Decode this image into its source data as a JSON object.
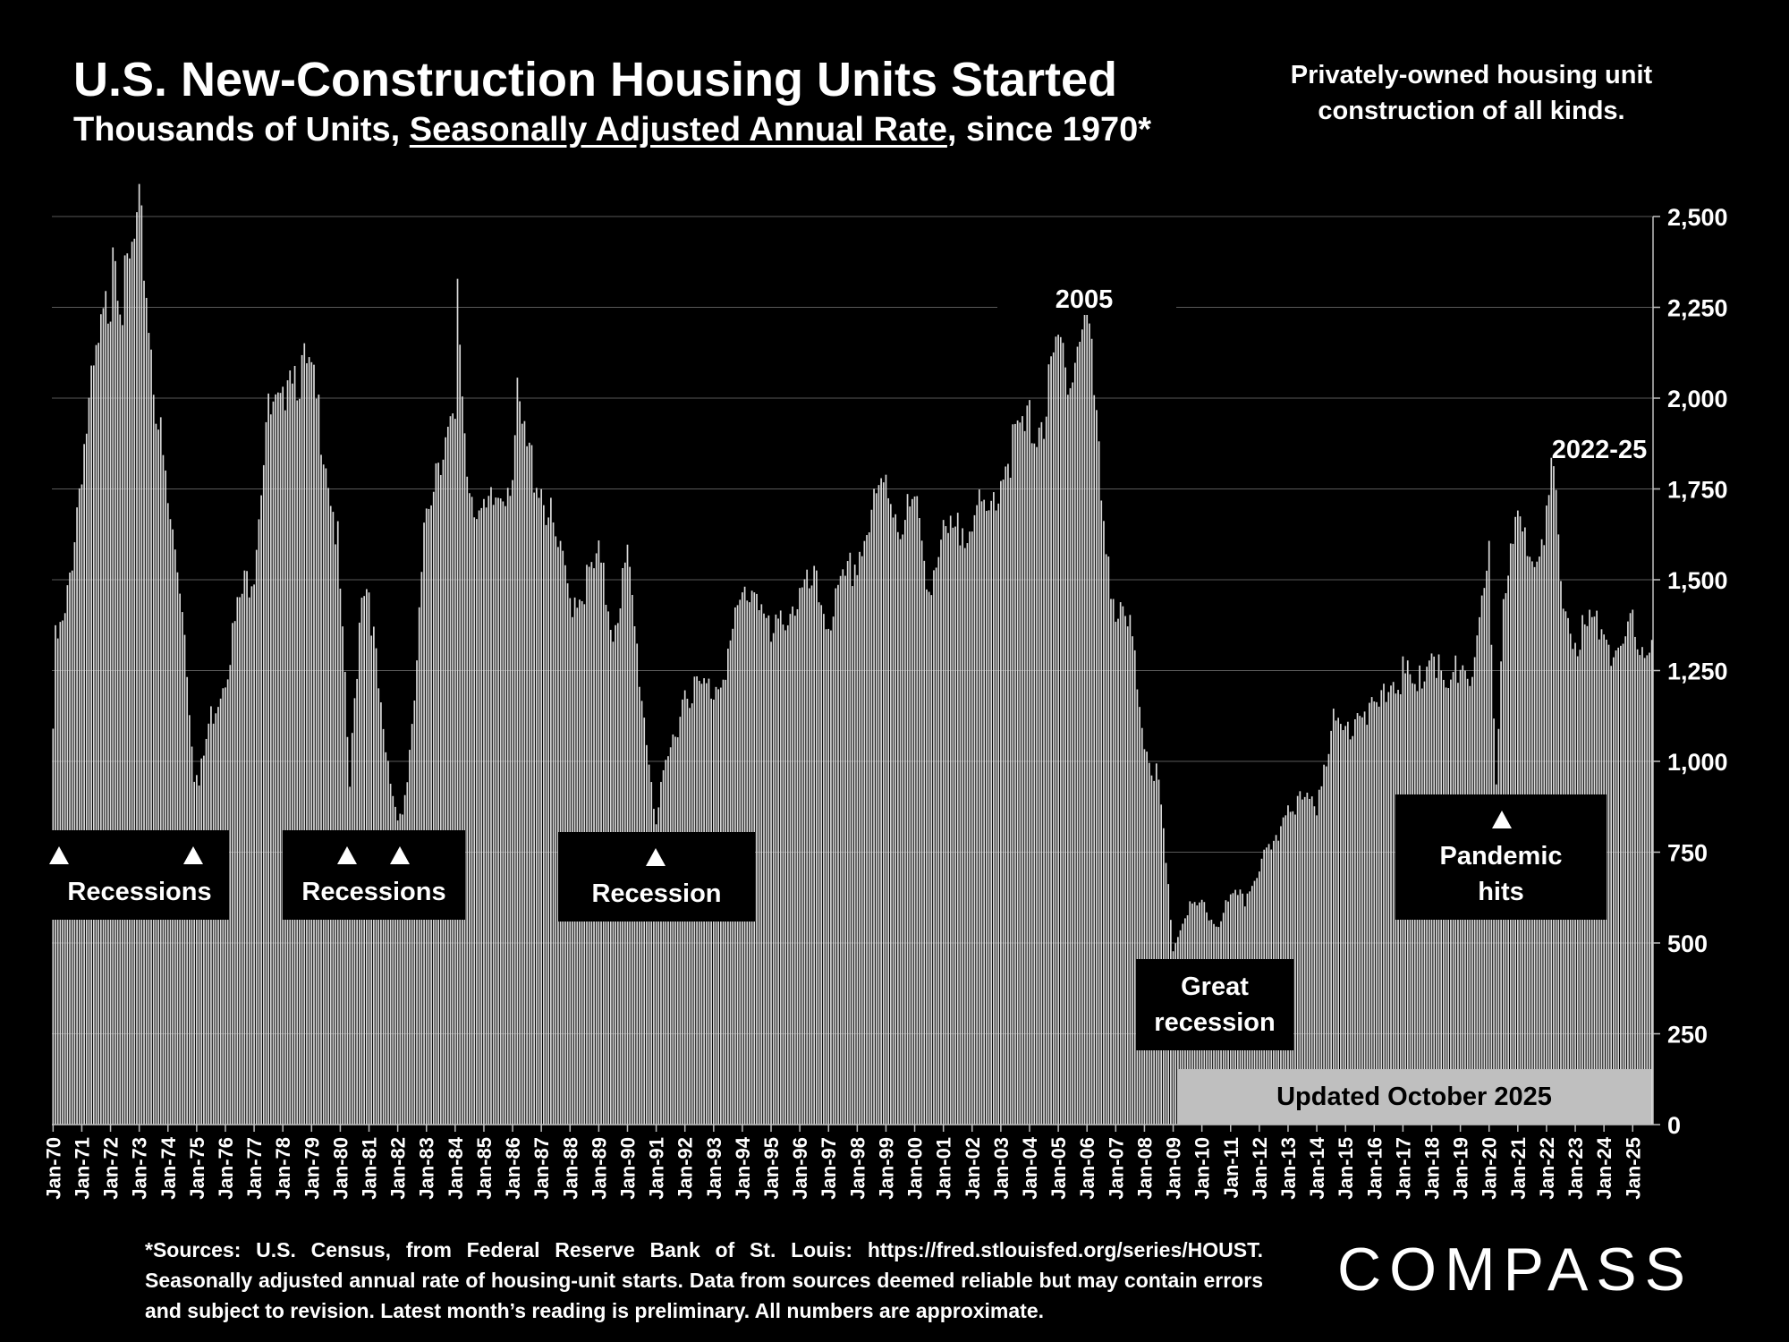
{
  "title": "U.S. New-Construction Housing Units Started",
  "subtitle": {
    "pre": "Thousands of Units, ",
    "underlined": "Seasonally Adjusted Annual Rate",
    "post": ", since 1970*"
  },
  "note": "Privately-owned housing unit\nconstruction of all kinds.",
  "updated": "Updated October 2025",
  "footnote": "*Sources: U.S. Census, from Federal Reserve Bank of St. Louis:  https://fred.stlouisfed.org/series/HOUST. Seasonally adjusted annual rate of housing-unit starts. Data from sources deemed reliable but may contain errors and subject to revision. Latest month’s reading is preliminary. All numbers are approximate.",
  "logo": "COMPASS",
  "colors": {
    "background": "#000000",
    "bars": "#d9d9d9",
    "grid": "#595959",
    "boxes": "#000000",
    "updated_box": "#bfbfbf"
  },
  "chart_data": {
    "type": "bar",
    "title": "U.S. New-Construction Housing Units Started",
    "ylabel": "",
    "ylim": [
      0,
      2500
    ],
    "y_ticks": [
      "0",
      "250",
      "500",
      "750",
      "1,000",
      "1,250",
      "1,500",
      "1,750",
      "2,000",
      "2,250",
      "2,500"
    ],
    "y_axis_side": "right",
    "grid": true,
    "x_start": "Jan-70",
    "x_end": "Sep-25",
    "x_ticks": [
      "Jan-70",
      "Jan-71",
      "Jan-72",
      "Jan-73",
      "Jan-74",
      "Jan-75",
      "Jan-76",
      "Jan-77",
      "Jan-78",
      "Jan-79",
      "Jan-80",
      "Jan-81",
      "Jan-82",
      "Jan-83",
      "Jan-84",
      "Jan-85",
      "Jan-86",
      "Jan-87",
      "Jan-88",
      "Jan-89",
      "Jan-90",
      "Jan-91",
      "Jan-92",
      "Jan-93",
      "Jan-94",
      "Jan-95",
      "Jan-96",
      "Jan-97",
      "Jan-98",
      "Jan-99",
      "Jan-00",
      "Jan-01",
      "Jan-02",
      "Jan-03",
      "Jan-04",
      "Jan-05",
      "Jan-06",
      "Jan-07",
      "Jan-08",
      "Jan-09",
      "Jan-10",
      "Jan-11",
      "Jan-12",
      "Jan-13",
      "Jan-14",
      "Jan-15",
      "Jan-16",
      "Jan-17",
      "Jan-18",
      "Jan-19",
      "Jan-20",
      "Jan-21",
      "Jan-22",
      "Jan-23",
      "Jan-24",
      "Jan-25"
    ],
    "series": [
      {
        "frequency": "monthly",
        "anchors": [
          [
            "Jan-70",
            1090
          ],
          [
            "Feb-70",
            1320
          ],
          [
            "Jun-70",
            1380
          ],
          [
            "Jan-71",
            1830
          ],
          [
            "Jun-71",
            2050
          ],
          [
            "Jan-72",
            2300
          ],
          [
            "Feb-72",
            2490
          ],
          [
            "Jun-72",
            2260
          ],
          [
            "Jan-73",
            2480
          ],
          [
            "Mar-73",
            2380
          ],
          [
            "Jul-73",
            2060
          ],
          [
            "Jan-74",
            1700
          ],
          [
            "Jul-74",
            1450
          ],
          [
            "Dec-74",
            980
          ],
          [
            "Feb-75",
            930
          ],
          [
            "Jun-75",
            1100
          ],
          [
            "Jan-76",
            1250
          ],
          [
            "Jul-76",
            1440
          ],
          [
            "Jan-77",
            1550
          ],
          [
            "Jun-77",
            1940
          ],
          [
            "Jan-78",
            1950
          ],
          [
            "Mar-78",
            2140
          ],
          [
            "Jul-78",
            2080
          ],
          [
            "Dec-78",
            2060
          ],
          [
            "Jun-79",
            1900
          ],
          [
            "Dec-79",
            1590
          ],
          [
            "May-80",
            930
          ],
          [
            "Oct-80",
            1500
          ],
          [
            "Jan-81",
            1480
          ],
          [
            "Jul-81",
            1050
          ],
          [
            "Dec-81",
            880
          ],
          [
            "Mar-82",
            860
          ],
          [
            "Jul-82",
            1060
          ],
          [
            "Jan-83",
            1700
          ],
          [
            "Jun-83",
            1860
          ],
          [
            "Jan-84",
            1900
          ],
          [
            "Feb-84",
            2260
          ],
          [
            "Jun-84",
            1800
          ],
          [
            "Jan-85",
            1650
          ],
          [
            "Jun-85",
            1720
          ],
          [
            "Jan-86",
            1810
          ],
          [
            "Mar-86",
            1970
          ],
          [
            "Jun-86",
            1870
          ],
          [
            "Jan-87",
            1760
          ],
          [
            "Jul-87",
            1600
          ],
          [
            "Jan-88",
            1450
          ],
          [
            "Jul-88",
            1480
          ],
          [
            "Jan-89",
            1550
          ],
          [
            "Jul-89",
            1370
          ],
          [
            "Jan-90",
            1550
          ],
          [
            "Jul-90",
            1180
          ],
          [
            "Jan-91",
            840
          ],
          [
            "Jul-91",
            1030
          ],
          [
            "Jan-92",
            1200
          ],
          [
            "Jul-92",
            1200
          ],
          [
            "Jan-93",
            1200
          ],
          [
            "Jul-93",
            1290
          ],
          [
            "Jan-94",
            1450
          ],
          [
            "Jul-94",
            1490
          ],
          [
            "Jan-95",
            1320
          ],
          [
            "Jul-95",
            1410
          ],
          [
            "Jan-96",
            1450
          ],
          [
            "Jul-96",
            1480
          ],
          [
            "Jan-97",
            1390
          ],
          [
            "Jul-97",
            1470
          ],
          [
            "Jan-98",
            1560
          ],
          [
            "Jul-98",
            1670
          ],
          [
            "Jan-99",
            1770
          ],
          [
            "Jul-99",
            1660
          ],
          [
            "Jan-00",
            1700
          ],
          [
            "Jul-00",
            1500
          ],
          [
            "Jan-01",
            1600
          ],
          [
            "Jul-01",
            1620
          ],
          [
            "Jan-02",
            1700
          ],
          [
            "Jul-02",
            1650
          ],
          [
            "Jan-03",
            1800
          ],
          [
            "Jul-03",
            1880
          ],
          [
            "Jan-04",
            1920
          ],
          [
            "Jul-04",
            1950
          ],
          [
            "Jan-05",
            2140
          ],
          [
            "Jul-05",
            2080
          ],
          [
            "Jan-06",
            2270
          ],
          [
            "Jul-06",
            1740
          ],
          [
            "Jan-07",
            1400
          ],
          [
            "Jul-07",
            1360
          ],
          [
            "Jan-08",
            1070
          ],
          [
            "Jul-08",
            930
          ],
          [
            "Jan-09",
            490
          ],
          [
            "Jul-09",
            590
          ],
          [
            "Jan-10",
            600
          ],
          [
            "Jul-10",
            550
          ],
          [
            "Jan-11",
            620
          ],
          [
            "Jul-11",
            620
          ],
          [
            "Jan-12",
            720
          ],
          [
            "Jul-12",
            750
          ],
          [
            "Jan-13",
            900
          ],
          [
            "Jul-13",
            880
          ],
          [
            "Jan-14",
            890
          ],
          [
            "Jul-14",
            1100
          ],
          [
            "Jan-15",
            1080
          ],
          [
            "Jul-15",
            1160
          ],
          [
            "Jan-16",
            1120
          ],
          [
            "Jul-16",
            1210
          ],
          [
            "Jan-17",
            1240
          ],
          [
            "Jul-17",
            1190
          ],
          [
            "Jan-18",
            1330
          ],
          [
            "Jul-18",
            1180
          ],
          [
            "Jan-19",
            1270
          ],
          [
            "Jul-19",
            1240
          ],
          [
            "Jan-20",
            1560
          ],
          [
            "Apr-20",
            940
          ],
          [
            "Jul-20",
            1490
          ],
          [
            "Jan-21",
            1630
          ],
          [
            "Jul-21",
            1590
          ],
          [
            "Jan-22",
            1680
          ],
          [
            "Apr-22",
            1800
          ],
          [
            "Jul-22",
            1450
          ],
          [
            "Jan-23",
            1340
          ],
          [
            "Jul-23",
            1370
          ],
          [
            "Jan-24",
            1380
          ],
          [
            "Jul-24",
            1260
          ],
          [
            "Jan-25",
            1370
          ],
          [
            "Sep-25",
            1300
          ]
        ]
      }
    ],
    "annotations": {
      "recessions_1": {
        "label": "Recessions"
      },
      "recessions_2": {
        "label": "Recessions"
      },
      "recession_3": {
        "label": "Recession"
      },
      "great_recession": {
        "label": "Great recession"
      },
      "pandemic": {
        "label": "Pandemic hits"
      },
      "peak_2005": {
        "label": "2005"
      },
      "peak_2022": {
        "label": "2022-25"
      }
    }
  }
}
